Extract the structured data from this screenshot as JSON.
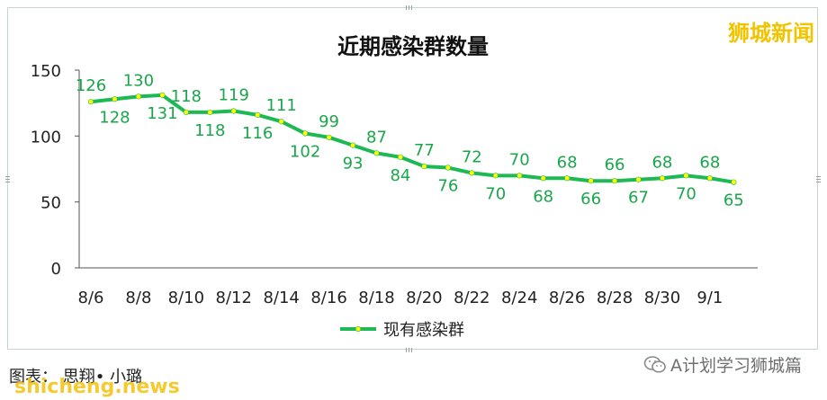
{
  "watermark": "狮城新闻",
  "caption": "图表：  思翔• 小璐",
  "site_mark": "shicheng.news",
  "account_name": "A计划学习狮城篇",
  "icons": {
    "account": "wechat-icon"
  },
  "colors": {
    "line": "#1db954",
    "marker": "#ffff00",
    "label": "#1aa64a"
  },
  "chart_data": {
    "type": "line",
    "title": "近期感染群数量",
    "legend_position": "bottom",
    "grid": false,
    "ylim": [
      0,
      150
    ],
    "yticks": [
      "0",
      "50",
      "100",
      "150"
    ],
    "xtick_labels": [
      "8/6",
      "8/8",
      "8/10",
      "8/12",
      "8/14",
      "8/16",
      "8/18",
      "8/20",
      "8/22",
      "8/24",
      "8/26",
      "8/28",
      "8/30",
      "9/1"
    ],
    "x": [
      "8/6",
      "8/7",
      "8/8",
      "8/9",
      "8/10",
      "8/11",
      "8/12",
      "8/13",
      "8/14",
      "8/15",
      "8/16",
      "8/17",
      "8/18",
      "8/19",
      "8/20",
      "8/21",
      "8/22",
      "8/23",
      "8/24",
      "8/25",
      "8/26",
      "8/27",
      "8/28",
      "8/29",
      "8/30",
      "8/31",
      "9/1",
      "9/2"
    ],
    "series": [
      {
        "name": "现有感染群",
        "values": [
          126,
          128,
          130,
          131,
          118,
          118,
          119,
          116,
          111,
          102,
          99,
          93,
          87,
          84,
          77,
          76,
          72,
          70,
          70,
          68,
          68,
          66,
          66,
          67,
          68,
          70,
          68,
          65
        ]
      }
    ]
  }
}
